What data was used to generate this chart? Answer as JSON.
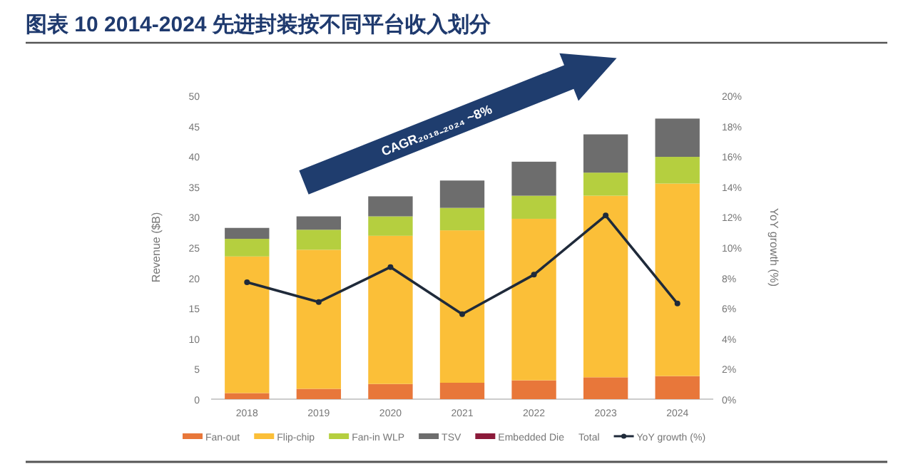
{
  "chart_data": {
    "type": "bar",
    "title": "图表 10 2014-2024 先进封装按不同平台收入划分",
    "ylabel": "Revenue ($B)",
    "y2label": "YoY growth (%)",
    "stacked": true,
    "legend": "bottom",
    "grid": false,
    "categories": [
      "2018",
      "2019",
      "2020",
      "2021",
      "2022",
      "2023",
      "2024"
    ],
    "series": [
      {
        "name": "Fan-out",
        "color": "#e8773a",
        "values": [
          1.0,
          1.7,
          2.5,
          2.7,
          3.1,
          3.6,
          3.8
        ]
      },
      {
        "name": "Flip-chip",
        "color": "#fbbf38",
        "values": [
          22.5,
          22.9,
          24.4,
          25.1,
          26.6,
          29.9,
          31.7
        ]
      },
      {
        "name": "Fan-in WLP",
        "color": "#b5cf3f",
        "values": [
          2.9,
          3.3,
          3.2,
          3.7,
          3.8,
          3.8,
          4.4
        ]
      },
      {
        "name": "TSV",
        "color": "#6d6d6d",
        "values": [
          1.8,
          2.2,
          3.3,
          4.5,
          5.6,
          6.3,
          6.3
        ]
      },
      {
        "name": "Embedded Die",
        "color": "#8b1a3a",
        "values": [
          null,
          null,
          null,
          null,
          null,
          null,
          null
        ]
      },
      {
        "name": "YoY growth (%)",
        "type": "line",
        "axis": "y2",
        "color": "#1f2a3a",
        "marker": "circle",
        "line_style": "solid",
        "values": [
          7.7,
          6.4,
          8.7,
          5.6,
          8.2,
          12.1,
          6.3
        ]
      }
    ],
    "ylim": [
      0,
      50
    ],
    "yticks": [
      0,
      5,
      10,
      15,
      20,
      25,
      30,
      35,
      40,
      45,
      50
    ],
    "y2lim": [
      0,
      20
    ],
    "y2ticks": [
      {
        "value": 0,
        "label": "0%"
      },
      {
        "value": 2,
        "label": "2%"
      },
      {
        "value": 4,
        "label": "4%"
      },
      {
        "value": 6,
        "label": "6%"
      },
      {
        "value": 8,
        "label": "8%"
      },
      {
        "value": 10,
        "label": "10%"
      },
      {
        "value": 12,
        "label": "12%"
      },
      {
        "value": 14,
        "label": "14%"
      },
      {
        "value": 16,
        "label": "16%"
      },
      {
        "value": 18,
        "label": "18%"
      },
      {
        "value": 20,
        "label": "20%"
      }
    ],
    "annotations": [
      "CAGR₂₀₁₈₋₂₀₂₄ ~8%",
      "Total"
    ]
  }
}
